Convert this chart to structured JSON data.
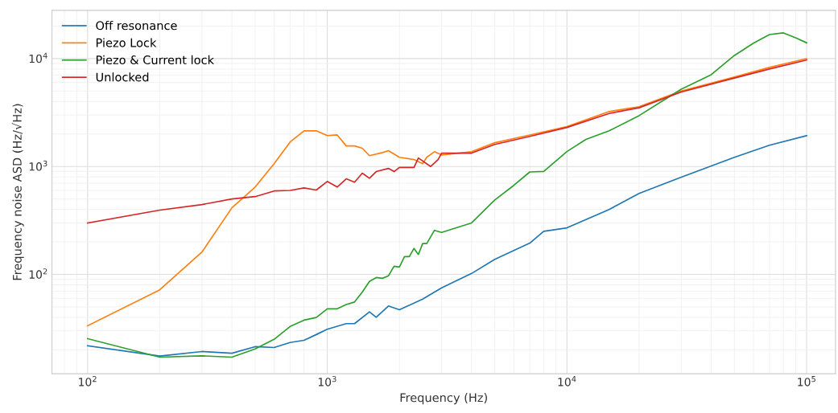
{
  "chart_data": {
    "type": "line",
    "xlabel": "Frequency (Hz)",
    "ylabel": "Frequency noise ASD (Hz/√Hz)",
    "log": "xy",
    "grid": true,
    "legend": "top left",
    "xlim": [
      71,
      132000
    ],
    "ylim": [
      12,
      28000
    ],
    "xticks": [
      {
        "value": 100,
        "label": "10$^{2}$"
      },
      {
        "value": 1000,
        "label": "10$^{3}$"
      },
      {
        "value": 10000,
        "label": "10$^{4}$"
      },
      {
        "value": 100000,
        "label": "10$^{5}$"
      }
    ],
    "yticks": [
      {
        "value": 100,
        "label": "10$^{2}$"
      },
      {
        "value": 1000,
        "label": "10$^{3}$"
      },
      {
        "value": 10000,
        "label": "10$^{4}$"
      }
    ],
    "series": [
      {
        "name": "Off resonance",
        "color": "#1f77b4",
        "x": [
          100,
          200,
          300,
          400,
          500,
          600,
          700,
          800,
          900,
          1000,
          1200,
          1300,
          1500,
          1600,
          1800,
          2000,
          2500,
          3000,
          4000,
          5000,
          7000,
          8000,
          10000,
          15000,
          20000,
          30000,
          50000,
          70000,
          100000
        ],
        "values": [
          21.8,
          17.5,
          19.3,
          18.6,
          21.4,
          21,
          23.4,
          24.5,
          27.7,
          31,
          35,
          35,
          45,
          40,
          51,
          47,
          59,
          75,
          102,
          138,
          195,
          251,
          270,
          400,
          562,
          795,
          1216,
          1575,
          1930
        ]
      },
      {
        "name": "Piezo Lock",
        "color": "#ff7f0e",
        "x": [
          100,
          200,
          300,
          400,
          500,
          600,
          700,
          800,
          900,
          1000,
          1100,
          1200,
          1300,
          1400,
          1500,
          1700,
          1800,
          2000,
          2300,
          2500,
          2600,
          2800,
          3000,
          4000,
          5000,
          7000,
          10000,
          15000,
          20000,
          30000,
          50000,
          70000,
          100000
        ],
        "values": [
          33.4,
          72,
          161,
          414,
          645,
          1062,
          1687,
          2140,
          2140,
          1933,
          1960,
          1550,
          1550,
          1475,
          1260,
          1345,
          1400,
          1217,
          1160,
          1060,
          1217,
          1370,
          1280,
          1370,
          1660,
          1960,
          2340,
          3230,
          3580,
          5000,
          6750,
          8280,
          10000
        ]
      },
      {
        "name": "Piezo & Current lock",
        "color": "#2ca02c",
        "x": [
          100,
          200,
          300,
          400,
          500,
          600,
          700,
          800,
          900,
          1000,
          1100,
          1200,
          1300,
          1400,
          1500,
          1600,
          1700,
          1800,
          1900,
          2000,
          2100,
          2200,
          2300,
          2400,
          2500,
          2600,
          2800,
          3000,
          4000,
          5000,
          6000,
          7000,
          8000,
          10000,
          12000,
          15000,
          20000,
          25000,
          30000,
          40000,
          50000,
          60000,
          70000,
          80000,
          90000,
          100000
        ],
        "values": [
          25.4,
          17.1,
          17.6,
          17.1,
          20.4,
          25,
          32.9,
          37.7,
          39.9,
          48,
          48,
          52.6,
          55.5,
          68.6,
          86,
          93.5,
          92,
          97,
          119,
          117,
          146,
          146,
          174,
          153,
          193,
          193,
          256,
          245,
          300,
          490,
          668,
          890,
          900,
          1375,
          1780,
          2140,
          2960,
          4040,
          5210,
          7100,
          10700,
          13900,
          16700,
          17300,
          15600,
          14000
        ]
      },
      {
        "name": "Unlocked",
        "color": "#d62728",
        "x": [
          100,
          200,
          300,
          400,
          500,
          600,
          700,
          800,
          900,
          1000,
          1100,
          1200,
          1300,
          1400,
          1500,
          1600,
          1800,
          1900,
          2000,
          2300,
          2400,
          2700,
          2900,
          3000,
          4000,
          5000,
          7000,
          10000,
          15000,
          20000,
          30000,
          50000,
          70000,
          100000
        ],
        "values": [
          299,
          394,
          444,
          500,
          526,
          593,
          600,
          633,
          605,
          727,
          645,
          768,
          715,
          867,
          777,
          897,
          960,
          897,
          980,
          980,
          1200,
          1000,
          1160,
          1330,
          1330,
          1600,
          1900,
          2300,
          3100,
          3500,
          4900,
          6600,
          8000,
          9700
        ]
      }
    ]
  }
}
